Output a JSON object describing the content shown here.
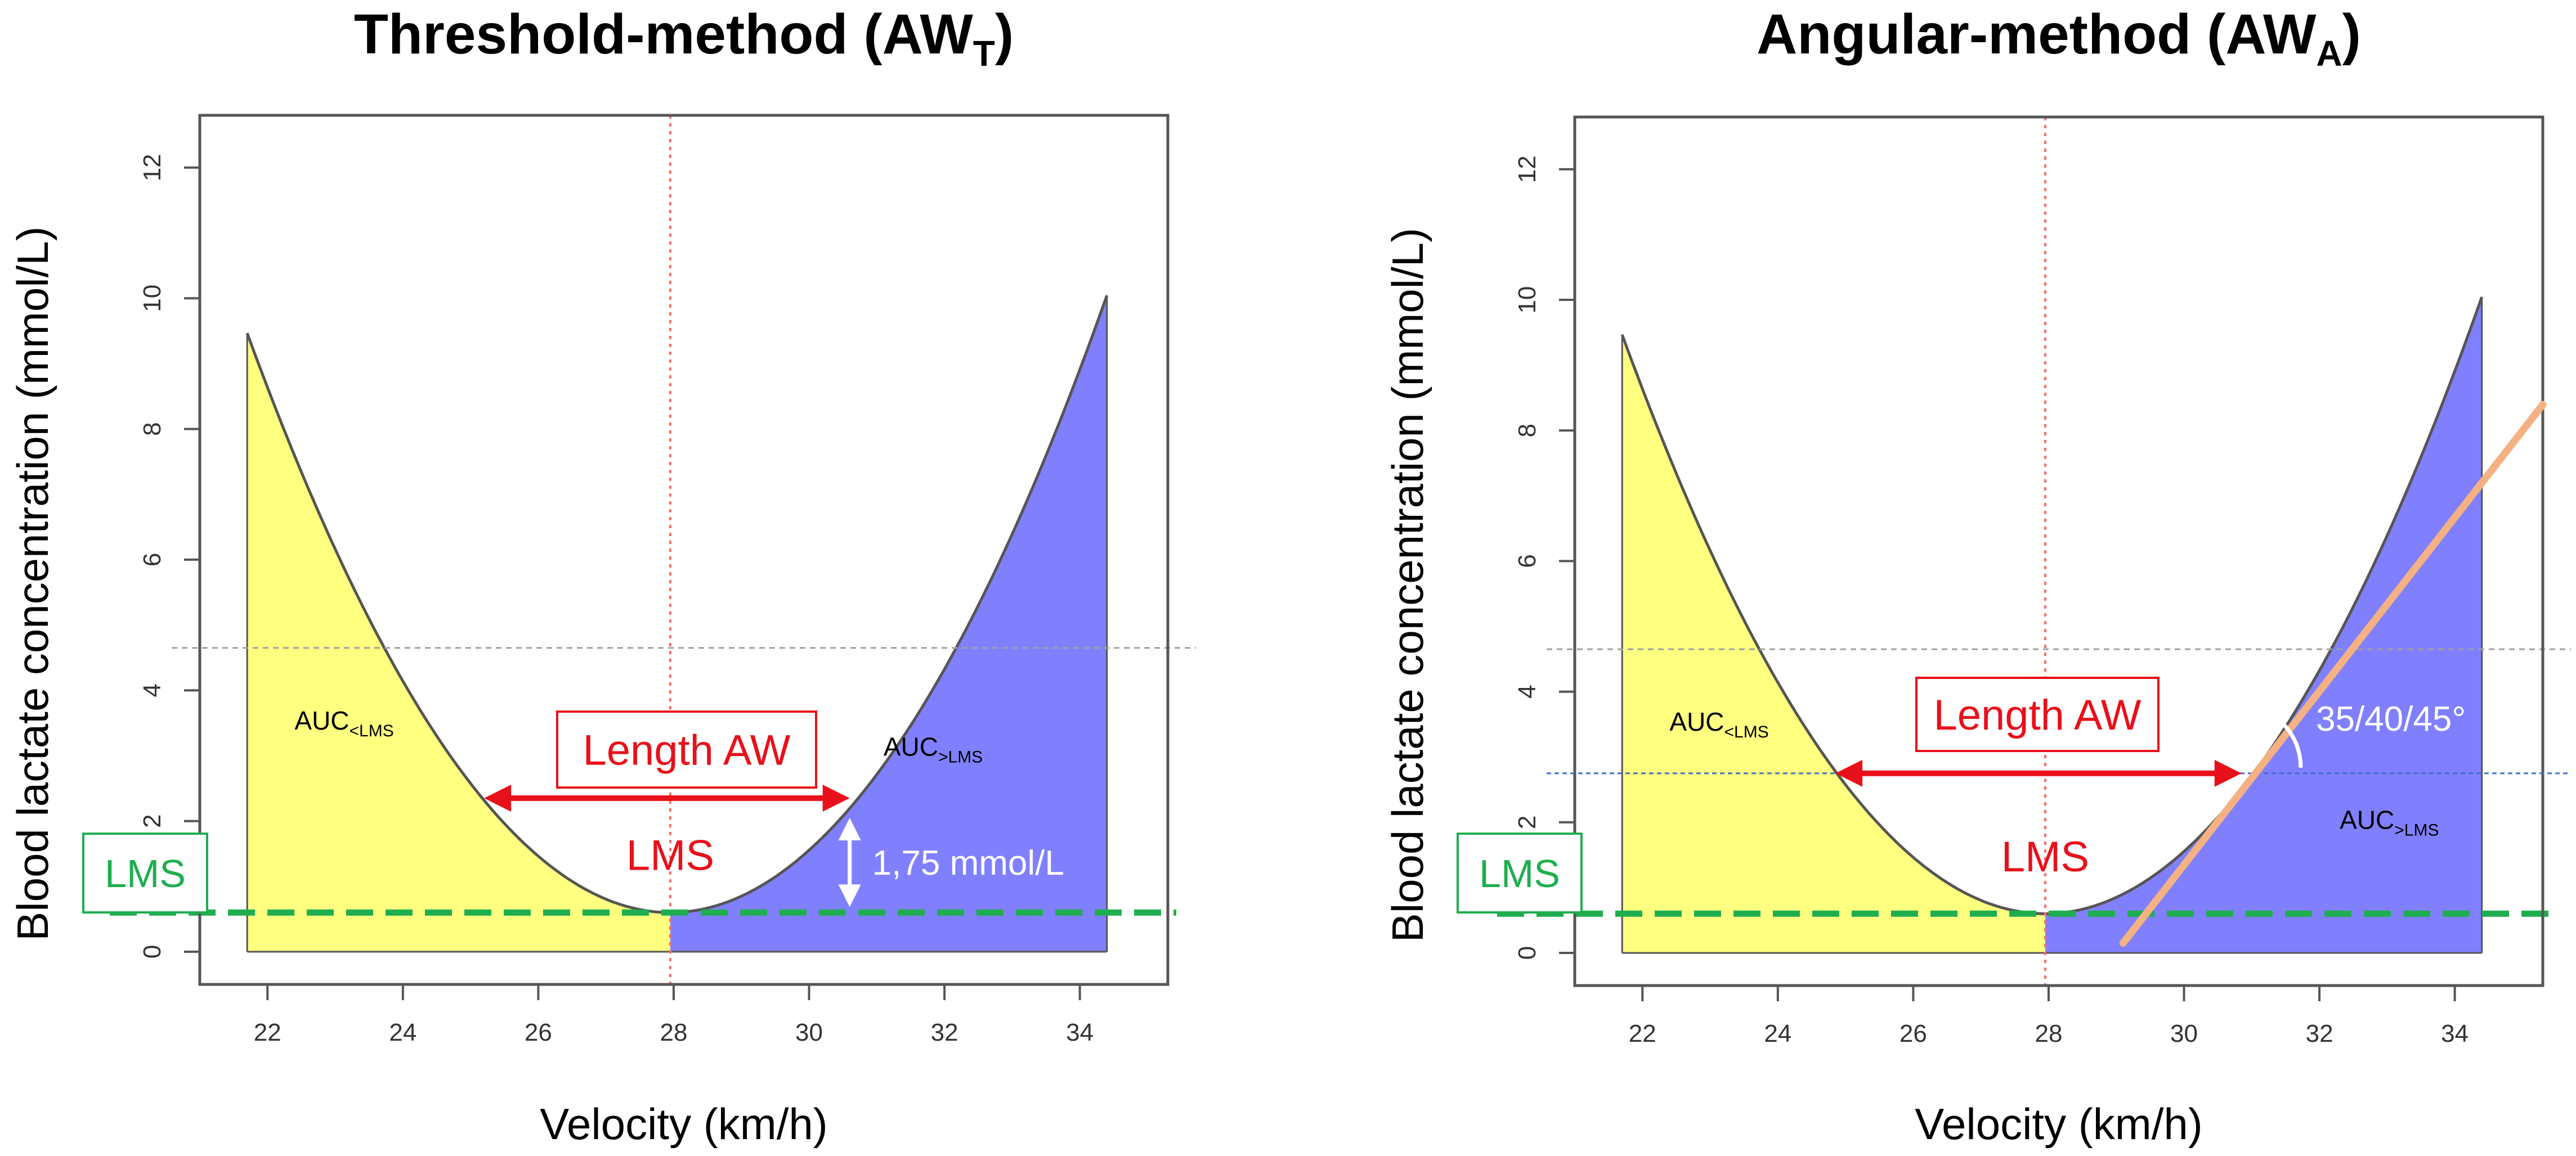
{
  "colors": {
    "yellow": "#ffff80",
    "blue": "#8080ff",
    "red": "#e8101a",
    "green": "#1fae4f",
    "orange": "#f4b183",
    "dashed_gray": "#a0a0a0",
    "dashed_blue": "#4472c4"
  },
  "chart_data": [
    {
      "type": "area",
      "title": "Threshold-method (AW",
      "title_sub": "T",
      "title_close": ")",
      "xlabel": "Velocity (km/h)",
      "ylabel": "Blood lactate concentration (mmol/L)",
      "xlim": [
        21,
        35.3
      ],
      "ylim": [
        -0.5,
        12.8
      ],
      "x_ticks": [
        "22",
        "24",
        "26",
        "28",
        "30",
        "32",
        "34"
      ],
      "y_ticks": [
        "0",
        "2",
        "4",
        "6",
        "8",
        "10",
        "12"
      ],
      "curve": {
        "x_min": 21.7,
        "x_max": 34.4,
        "vertex_x": 27.95,
        "vertex_y": 0.6,
        "coef": 0.227
      },
      "lms_velocity": 27.95,
      "lms_lactate": 0.6,
      "upper_ref_line": 4.65,
      "aw_threshold_lactate": 2.35,
      "aw_left_velocity": 25.2,
      "aw_right_velocity": 30.6,
      "auc_left": "AUC",
      "auc_left_sub": "<LMS",
      "auc_right": "AUC",
      "auc_right_sub": ">LMS",
      "length_label": "Length AW",
      "lms_marker_label": "LMS",
      "lms_box_label": "LMS",
      "delta_label": "1,75 mmol/L"
    },
    {
      "type": "area",
      "title": "Angular-method (AW",
      "title_sub": "A",
      "title_close": ")",
      "xlabel": "Velocity (km/h)",
      "ylabel": "Blood lactate concentration (mmol/L)",
      "xlim": [
        21,
        35.3
      ],
      "ylim": [
        -0.5,
        12.8
      ],
      "x_ticks": [
        "22",
        "24",
        "26",
        "28",
        "30",
        "32",
        "34"
      ],
      "y_ticks": [
        "0",
        "2",
        "4",
        "6",
        "8",
        "10",
        "12"
      ],
      "curve": {
        "x_min": 21.7,
        "x_max": 34.4,
        "vertex_x": 27.95,
        "vertex_y": 0.6,
        "coef": 0.227
      },
      "lms_velocity": 27.95,
      "lms_lactate": 0.6,
      "upper_ref_line": 4.65,
      "aw_threshold_lactate": 2.75,
      "aw_left_velocity": 24.85,
      "aw_right_velocity": 30.85,
      "tangent_line": {
        "x_start": 29.1,
        "y_start": 0.15,
        "slope": 1.33,
        "x_end": 35.3
      },
      "angle_label": "35/40/45°",
      "auc_left": "AUC",
      "auc_left_sub": "<LMS",
      "auc_right": "AUC",
      "auc_right_sub": ">LMS",
      "length_label": "Length AW",
      "lms_marker_label": "LMS",
      "lms_box_label": "LMS"
    }
  ]
}
